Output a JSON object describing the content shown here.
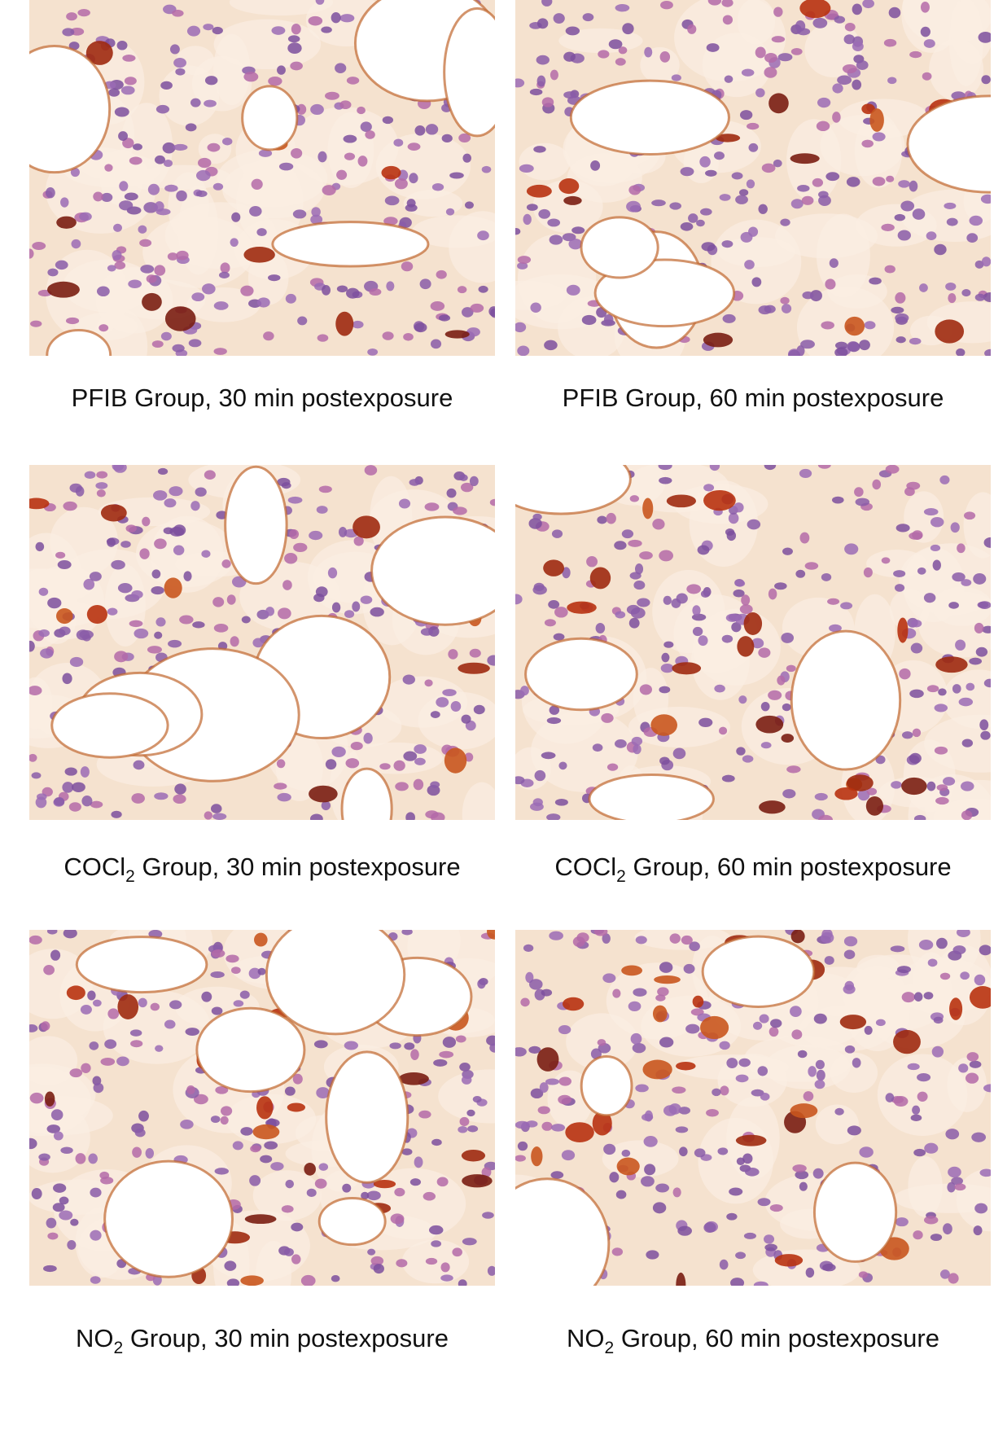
{
  "panels": [
    {
      "caption": [
        {
          "text": "PFIB Group, 30 min postexposure"
        }
      ]
    },
    {
      "caption": [
        {
          "text": "PFIB Group, 60 min postexposure"
        }
      ]
    },
    {
      "caption": [
        {
          "text": "COCl"
        },
        {
          "sub": "2"
        },
        {
          "text": " Group, 30 min postexposure"
        }
      ]
    },
    {
      "caption": [
        {
          "text": "COCl"
        },
        {
          "sub": "2"
        },
        {
          "text": " Group, 60 min postexposure"
        }
      ]
    },
    {
      "caption": [
        {
          "text": "NO"
        },
        {
          "sub": "2"
        },
        {
          "text": " Group, 30 min postexposure"
        }
      ]
    },
    {
      "caption": [
        {
          "text": "NO"
        },
        {
          "sub": "2"
        },
        {
          "text": " Group, 60 min postexposure"
        }
      ]
    }
  ]
}
